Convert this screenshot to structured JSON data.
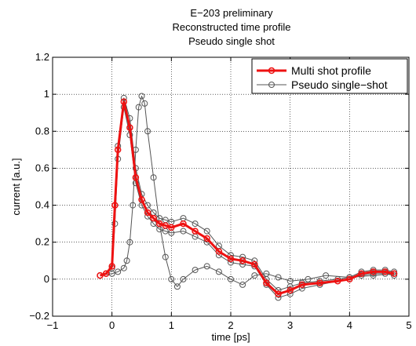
{
  "chart_data": {
    "type": "line",
    "title_lines": [
      "E−203 preliminary",
      "Reconstructed time profile",
      "Pseudo single shot"
    ],
    "xlabel": "time [ps]",
    "ylabel": "current [a.u.]",
    "xlim": [
      -1,
      5
    ],
    "ylim": [
      -0.2,
      1.2
    ],
    "xticks": [
      -1,
      0,
      1,
      2,
      3,
      4,
      5
    ],
    "xtick_labels": [
      "−1",
      "0",
      "1",
      "2",
      "3",
      "4",
      "5"
    ],
    "yticks": [
      -0.2,
      0,
      0.2,
      0.4,
      0.6,
      0.8,
      1,
      1.2
    ],
    "ytick_labels": [
      "−0.2",
      "0",
      "0.2",
      "0.4",
      "0.6",
      "0.8",
      "1",
      "1.2"
    ],
    "grid": true,
    "legend_position": "top-right",
    "series": [
      {
        "name": "Pseudo single−shot",
        "color": "#555555",
        "marker": "circle",
        "x": [
          -0.2,
          -0.1,
          0.0,
          0.05,
          0.1,
          0.2,
          0.3,
          0.4,
          0.5,
          0.6,
          0.7,
          0.8,
          0.9,
          1.0,
          1.2,
          1.4,
          1.6,
          1.8,
          2.0,
          2.2,
          2.4,
          2.6,
          2.8,
          3.0,
          3.2,
          3.5,
          3.8,
          4.0,
          4.2,
          4.4,
          4.6,
          4.75
        ],
        "y": [
          0.02,
          0.03,
          0.07,
          0.4,
          0.72,
          0.98,
          0.87,
          0.6,
          0.46,
          0.4,
          0.36,
          0.33,
          0.32,
          0.31,
          0.33,
          0.3,
          0.26,
          0.18,
          0.13,
          0.12,
          0.1,
          0.0,
          -0.06,
          -0.04,
          -0.02,
          -0.01,
          0.0,
          0.01,
          0.04,
          0.05,
          0.05,
          0.04
        ]
      },
      {
        "name": "",
        "color": "#555555",
        "marker": "circle",
        "x": [
          -0.2,
          -0.1,
          0.0,
          0.05,
          0.1,
          0.2,
          0.3,
          0.4,
          0.5,
          0.6,
          0.7,
          0.8,
          0.9,
          1.0,
          1.2,
          1.4,
          1.6,
          1.8,
          2.0,
          2.2,
          2.4,
          2.6,
          2.8,
          3.0,
          3.2,
          3.5,
          3.8,
          4.0,
          4.2,
          4.4,
          4.6,
          4.75
        ],
        "y": [
          0.02,
          0.03,
          0.06,
          0.3,
          0.65,
          0.93,
          0.78,
          0.52,
          0.4,
          0.34,
          0.3,
          0.27,
          0.26,
          0.25,
          0.26,
          0.23,
          0.2,
          0.13,
          0.09,
          0.08,
          0.07,
          -0.03,
          -0.1,
          -0.08,
          -0.05,
          -0.03,
          -0.01,
          0.0,
          0.02,
          0.03,
          0.03,
          0.02
        ]
      },
      {
        "name": "",
        "color": "#555555",
        "marker": "circle",
        "x": [
          -0.2,
          0.0,
          0.1,
          0.2,
          0.25,
          0.3,
          0.35,
          0.4,
          0.45,
          0.5,
          0.55,
          0.6,
          0.7,
          0.8,
          0.9,
          1.0,
          1.1,
          1.2,
          1.4,
          1.6,
          1.8,
          2.0,
          2.2,
          2.4,
          2.6,
          2.8,
          3.0,
          3.3,
          3.6,
          4.0,
          4.4,
          4.75
        ],
        "y": [
          0.02,
          0.03,
          0.04,
          0.06,
          0.1,
          0.2,
          0.4,
          0.7,
          0.93,
          0.99,
          0.95,
          0.8,
          0.55,
          0.3,
          0.12,
          0.0,
          -0.04,
          0.0,
          0.05,
          0.07,
          0.04,
          0.0,
          -0.03,
          0.02,
          0.03,
          0.01,
          -0.01,
          0.0,
          0.02,
          0.01,
          0.02,
          0.03
        ]
      },
      {
        "name": "Multi shot profile",
        "color": "#ee1111",
        "marker": "circle",
        "x": [
          -0.2,
          -0.1,
          0.0,
          0.05,
          0.1,
          0.2,
          0.3,
          0.4,
          0.5,
          0.6,
          0.7,
          0.8,
          0.9,
          1.0,
          1.2,
          1.4,
          1.6,
          1.8,
          2.0,
          2.2,
          2.4,
          2.6,
          2.8,
          3.0,
          3.2,
          3.5,
          3.8,
          4.0,
          4.2,
          4.4,
          4.6,
          4.75
        ],
        "y": [
          0.02,
          0.03,
          0.07,
          0.4,
          0.7,
          0.96,
          0.82,
          0.55,
          0.43,
          0.36,
          0.33,
          0.3,
          0.29,
          0.28,
          0.3,
          0.26,
          0.22,
          0.15,
          0.11,
          0.1,
          0.08,
          -0.02,
          -0.08,
          -0.06,
          -0.03,
          -0.02,
          -0.01,
          0.0,
          0.03,
          0.04,
          0.04,
          0.03
        ]
      }
    ]
  }
}
